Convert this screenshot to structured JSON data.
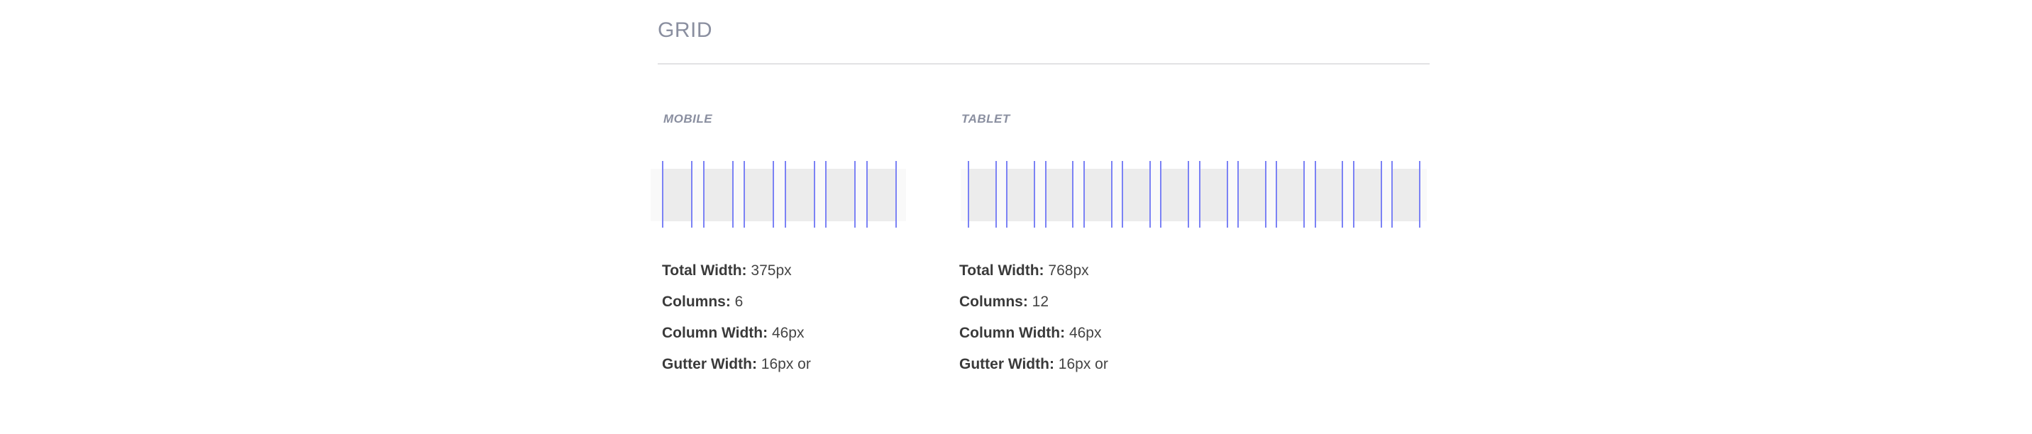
{
  "section": {
    "title": "GRID"
  },
  "colors": {
    "column_line": "#7b82f5",
    "column_fill": "#ececec",
    "gutter_fill": "#f9f9f9",
    "title": "#8a8fa0"
  },
  "mobile": {
    "label": "MOBILE",
    "columns_count": 6,
    "specs": [
      {
        "label": "Total Width:",
        "value": "375px"
      },
      {
        "label": "Columns:",
        "value": "6"
      },
      {
        "label": "Column Width:",
        "value": "46px"
      },
      {
        "label": "Gutter Width:",
        "value": "16px or"
      }
    ]
  },
  "tablet": {
    "label": "TABLET",
    "columns_count": 12,
    "specs": [
      {
        "label": "Total Width:",
        "value": "768px"
      },
      {
        "label": "Columns:",
        "value": "12"
      },
      {
        "label": "Column Width:",
        "value": "46px"
      },
      {
        "label": "Gutter Width:",
        "value": "16px or"
      }
    ]
  }
}
